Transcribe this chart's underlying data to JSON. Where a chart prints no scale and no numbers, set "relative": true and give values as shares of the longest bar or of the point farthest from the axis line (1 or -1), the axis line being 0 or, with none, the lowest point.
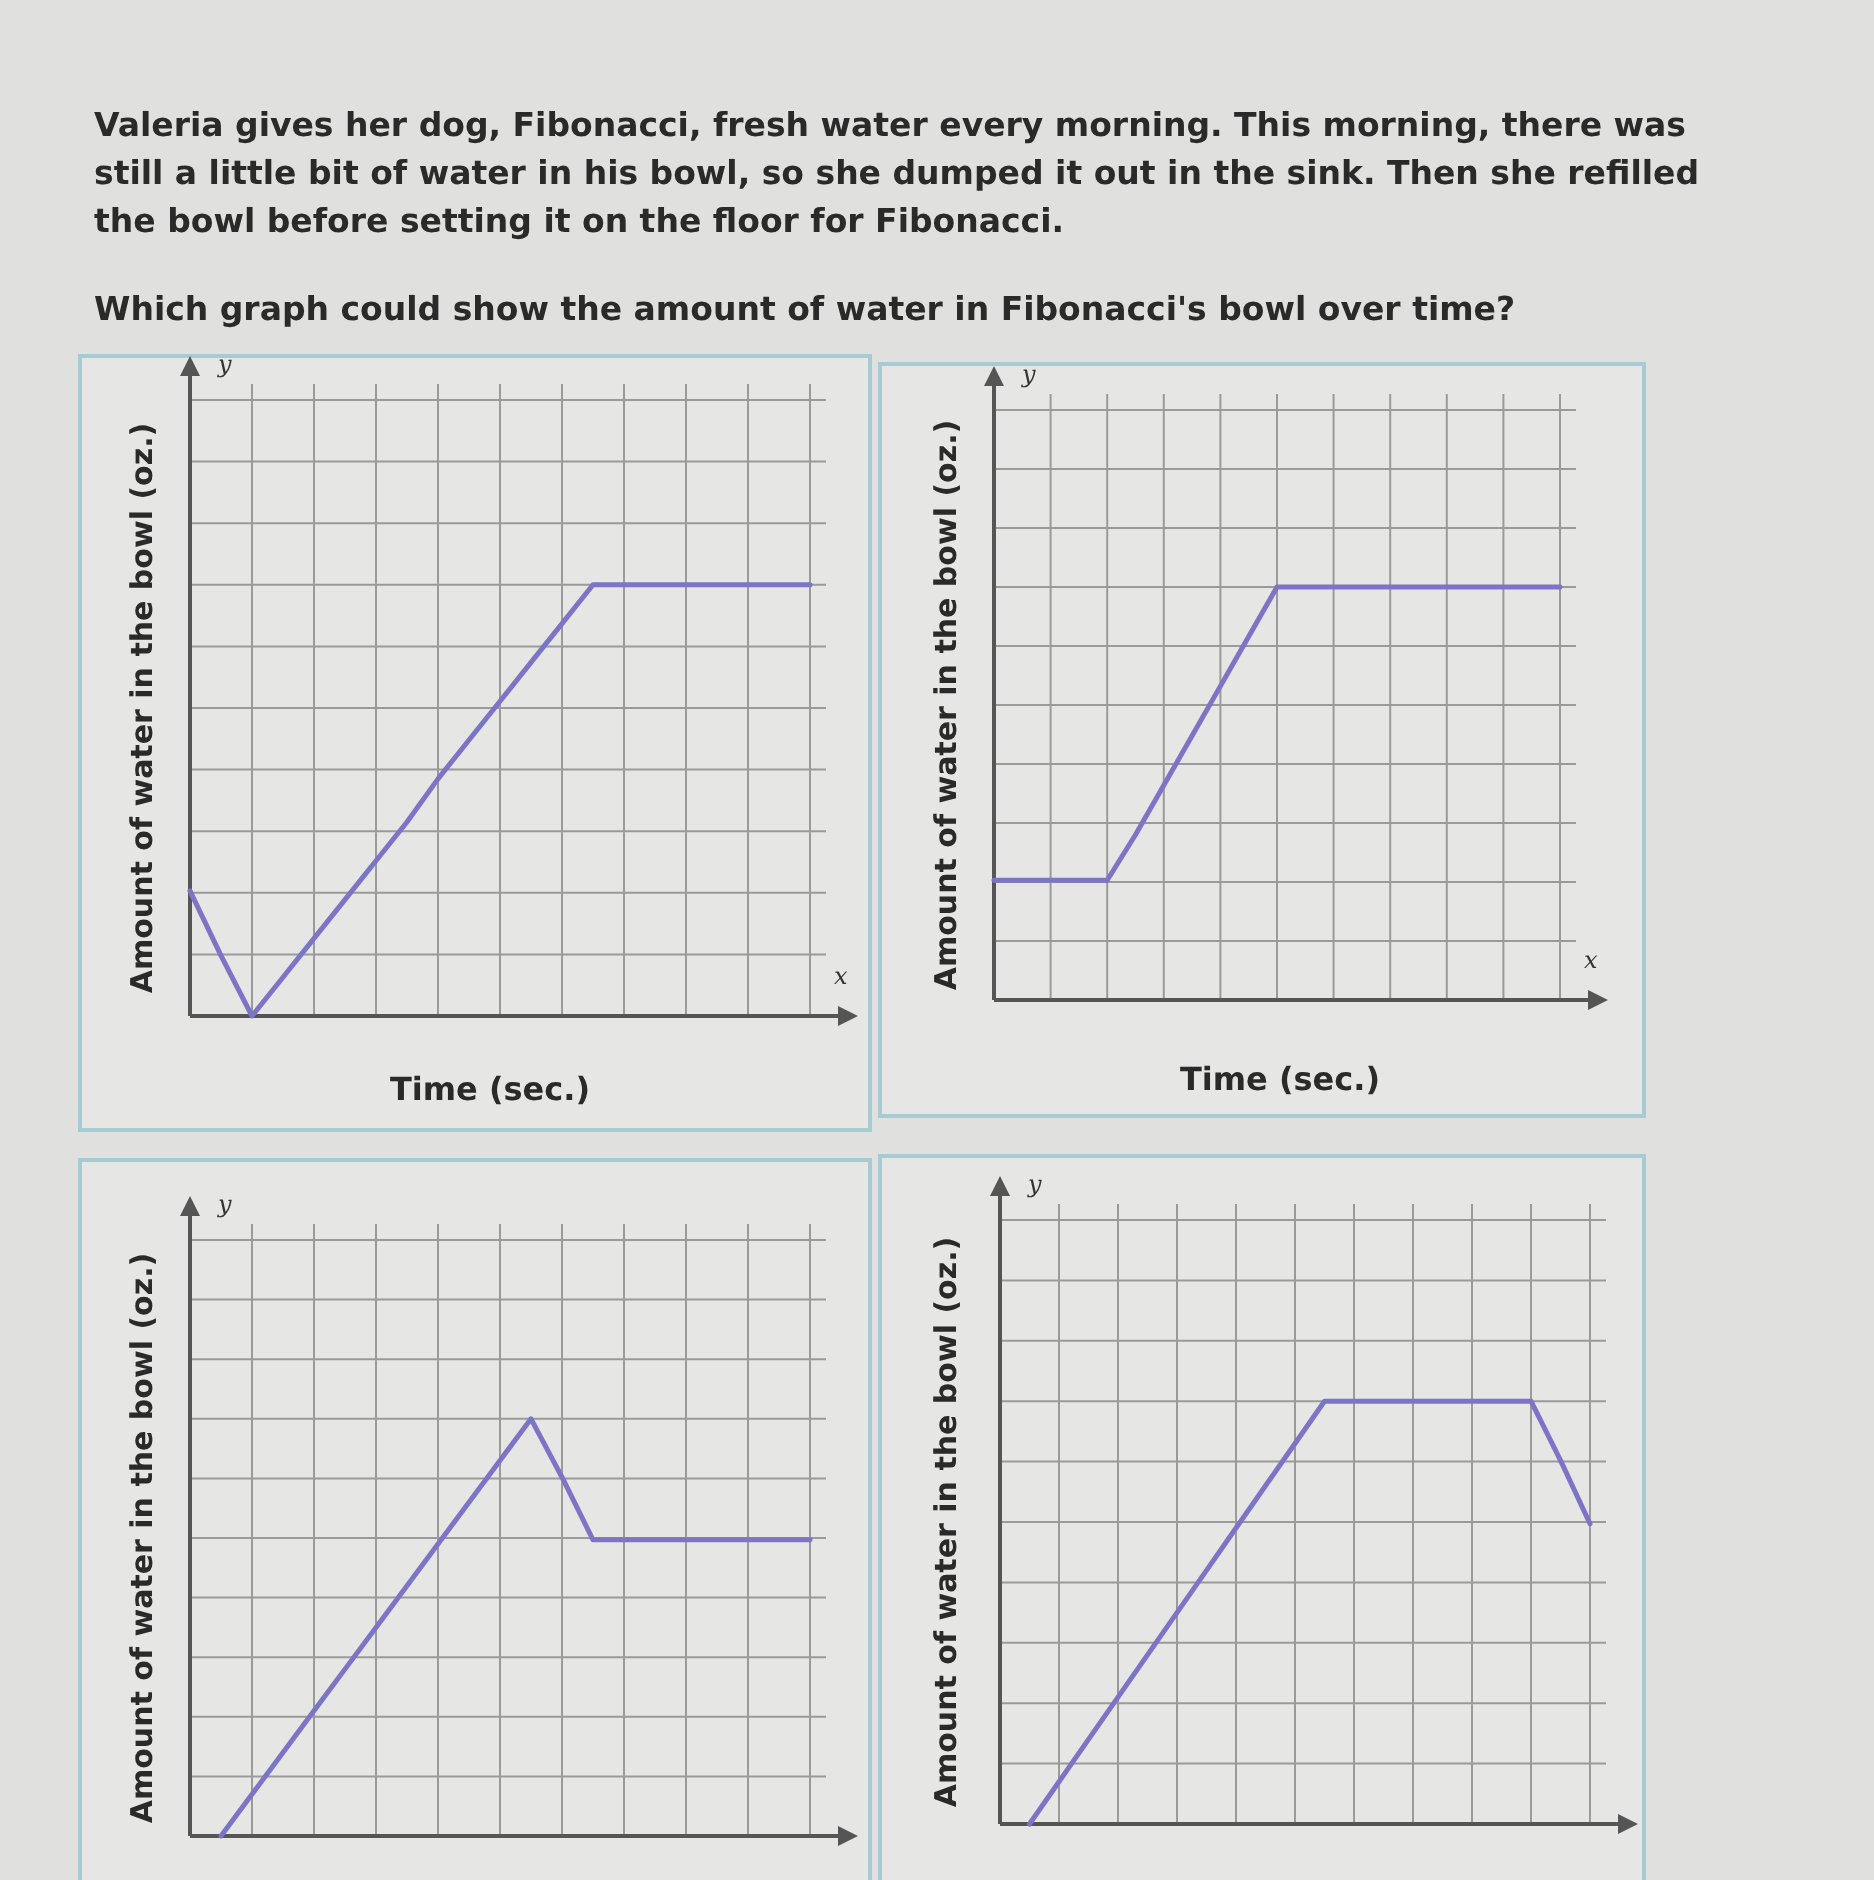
{
  "chart_data": [
    {
      "type": "line",
      "title": "Valeria gives her dog, Fibonacci, fresh water every morning. This morning, there was still a little bit of water in his bowl, so she dumped it out in the sink. Then she refilled the bowl before setting it on the floor for Fibonacci.",
      "subtitle": "Which graph could show the amount of water in Fibonacci's bowl over time?",
      "xlabel": "Time (sec.)",
      "ylabel": "Amount of water in the bowl (oz.)",
      "annotations": [
        "y",
        "x"
      ],
      "relative": true,
      "grid": true,
      "categories": [
        null,
        null,
        null,
        null,
        null,
        null,
        null,
        null,
        null,
        null,
        null,
        null,
        null,
        null,
        null,
        null,
        null,
        null,
        null,
        null,
        null
      ],
      "series": [
        {
          "color": "#7d74c6",
          "values": [
            0.29,
            0.14,
            0,
            0.09,
            0.18,
            0.27,
            0.36,
            0.45,
            0.55,
            0.64,
            0.73,
            0.82,
            0.91,
            1,
            1,
            1,
            1,
            1,
            1,
            1,
            1
          ]
        }
      ]
    },
    {
      "type": "line",
      "xlabel": "Time (sec.)",
      "ylabel": "Amount of water in the bowl (oz.)",
      "annotations": [
        "y",
        "x"
      ],
      "relative": true,
      "grid": true,
      "categories": [
        null,
        null,
        null,
        null,
        null,
        null,
        null,
        null,
        null,
        null,
        null,
        null,
        null,
        null,
        null,
        null,
        null,
        null,
        null,
        null,
        null
      ],
      "series": [
        {
          "color": "#7d74c6",
          "values": [
            0.29,
            0.29,
            0.29,
            0.29,
            0.29,
            0.4,
            0.52,
            0.64,
            0.76,
            0.88,
            1,
            1,
            1,
            1,
            1,
            1,
            1,
            1,
            1,
            1,
            1
          ]
        }
      ]
    },
    {
      "type": "line",
      "ylabel": "Amount of water in the bowl (oz.)",
      "annotations": [
        "y"
      ],
      "relative": true,
      "grid": true,
      "categories": [
        null,
        null,
        null,
        null,
        null,
        null,
        null,
        null,
        null,
        null,
        null,
        null,
        null,
        null,
        null,
        null,
        null,
        null,
        null,
        null,
        null
      ],
      "series": [
        {
          "color": "#7d74c6",
          "values": [
            null,
            0,
            0.1,
            0.2,
            0.3,
            0.4,
            0.5,
            0.6,
            0.7,
            0.8,
            0.9,
            1,
            0.86,
            0.71,
            0.71,
            0.71,
            0.71,
            0.71,
            0.71,
            0.71,
            0.71
          ]
        }
      ]
    },
    {
      "type": "line",
      "ylabel": "Amount of water in the bowl (oz.)",
      "annotations": [
        "y"
      ],
      "relative": true,
      "grid": true,
      "categories": [
        null,
        null,
        null,
        null,
        null,
        null,
        null,
        null,
        null,
        null,
        null,
        null,
        null,
        null,
        null,
        null,
        null,
        null,
        null,
        null,
        null
      ],
      "series": [
        {
          "color": "#7d74c6",
          "values": [
            null,
            0,
            0.1,
            0.2,
            0.3,
            0.4,
            0.5,
            0.6,
            0.7,
            0.8,
            0.9,
            1,
            1,
            1,
            1,
            1,
            1,
            1,
            1,
            0.86,
            0.71
          ]
        }
      ]
    }
  ]
}
